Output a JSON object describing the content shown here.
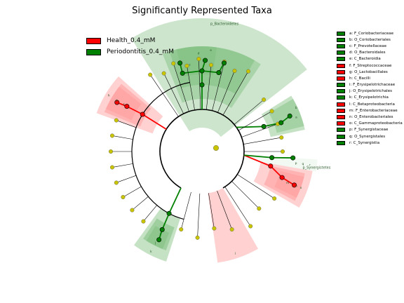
{
  "title": "Significantly Represented Taxa",
  "colors": {
    "health": "#ff0000",
    "periodontitis": "#008000",
    "health_shade": "#ff9a9a",
    "periodontitis_shade": "#7fbf7f",
    "node_neutral": "#c8c400"
  },
  "class_legend": [
    {
      "label": "Health_0.4_mM",
      "color": "#ff0000"
    },
    {
      "label": "Periodontitis_0.4_mM",
      "color": "#008000"
    }
  ],
  "clade_legend": [
    {
      "label": "a: F_Coriobacteriaceae",
      "color": "#008000"
    },
    {
      "label": "b: O_Coriobacteriales",
      "color": "#008000"
    },
    {
      "label": "c: F_Prevotellaceae",
      "color": "#008000"
    },
    {
      "label": "d: O_Bacteroidales",
      "color": "#008000"
    },
    {
      "label": "e: C_Bacteroidia",
      "color": "#008000"
    },
    {
      "label": "f: F_Streptococcaceae",
      "color": "#ff0000"
    },
    {
      "label": "g: O_Lactobacillales",
      "color": "#ff0000"
    },
    {
      "label": "h: C_Bacilli",
      "color": "#ff0000"
    },
    {
      "label": "i: F_Erysipelotrichaceae",
      "color": "#008000"
    },
    {
      "label": "j: O_Erysipelotrichales",
      "color": "#008000"
    },
    {
      "label": "k: C_Erysipelotrichia",
      "color": "#008000"
    },
    {
      "label": "l: C_Betaproteobacteria",
      "color": "#ff0000"
    },
    {
      "label": "m: F_Enterobacteriaceae",
      "color": "#ff0000"
    },
    {
      "label": "n: O_Enterobacteriales",
      "color": "#ff0000"
    },
    {
      "label": "o: C_Gammaproteobacteria",
      "color": "#ff0000"
    },
    {
      "label": "p: F_Synergistaceae",
      "color": "#008000"
    },
    {
      "label": "q: O_Synergistales",
      "color": "#008000"
    },
    {
      "label": "r: C_Synergistia",
      "color": "#008000"
    }
  ],
  "cladogram": {
    "sectors": [
      {
        "letter": "p_Bacteroidetes",
        "label": "p_Bacteroidetes",
        "class": "periodontitis"
      },
      {
        "letter": "e",
        "label": "e",
        "class": "periodontitis"
      },
      {
        "letter": "d",
        "label": "d",
        "class": "periodontitis"
      },
      {
        "letter": "c",
        "label": "c",
        "class": "periodontitis"
      },
      {
        "letter": "a",
        "label": "a",
        "class": "periodontitis"
      },
      {
        "letter": "b",
        "label": "b",
        "class": "periodontitis"
      },
      {
        "letter": "h",
        "label": "h",
        "class": "health"
      },
      {
        "letter": "g",
        "label": "g",
        "class": "health"
      },
      {
        "letter": "f",
        "label": "f",
        "class": "health"
      },
      {
        "letter": "k",
        "label": "k",
        "class": "periodontitis"
      },
      {
        "letter": "j",
        "label": "j",
        "class": "periodontitis"
      },
      {
        "letter": "i",
        "label": "i",
        "class": "periodontitis"
      },
      {
        "letter": "l",
        "label": "l",
        "class": "health"
      },
      {
        "letter": "o",
        "label": "o",
        "class": "health"
      },
      {
        "letter": "n",
        "label": "n",
        "class": "health"
      },
      {
        "letter": "m",
        "label": "m",
        "class": "health"
      },
      {
        "letter": "p_Synergistetes",
        "label": "p_Synergistetes",
        "class": "periodontitis"
      },
      {
        "letter": "r",
        "label": "r",
        "class": "periodontitis"
      },
      {
        "letter": "q",
        "label": "q",
        "class": "periodontitis"
      },
      {
        "letter": "p",
        "label": "p",
        "class": "periodontitis"
      }
    ]
  }
}
